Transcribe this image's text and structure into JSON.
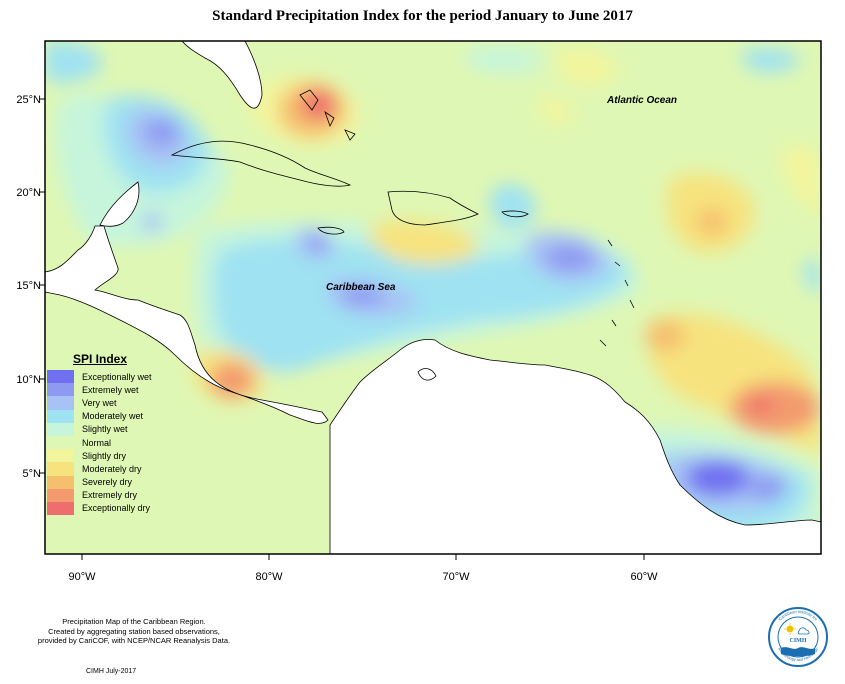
{
  "title": "Standard Precipitation Index for the period January to June 2017",
  "axes": {
    "x_ticks": [
      "90°W",
      "80°W",
      "70°W",
      "60°W"
    ],
    "y_ticks": [
      "25°N",
      "20°N",
      "15°N",
      "10°N",
      "5°N"
    ]
  },
  "labels": {
    "atlantic": "Atlantic Ocean",
    "caribbean": "Caribbean Sea"
  },
  "legend": {
    "title": "SPI Index",
    "items": [
      {
        "label": "Exceptionally wet",
        "color": "#6f6ff0"
      },
      {
        "label": "Extremely wet",
        "color": "#8e9af2"
      },
      {
        "label": "Very wet",
        "color": "#a9c2f5"
      },
      {
        "label": "Moderately wet",
        "color": "#9fe2f2"
      },
      {
        "label": "Slightly wet",
        "color": "#c6f5dc"
      },
      {
        "label": "Normal",
        "color": "#dff7b4"
      },
      {
        "label": "Slightly dry",
        "color": "#f3f59c"
      },
      {
        "label": "Moderately dry",
        "color": "#f7e37e"
      },
      {
        "label": "Severely dry",
        "color": "#f5c06e"
      },
      {
        "label": "Extremely dry",
        "color": "#f39a6e"
      },
      {
        "label": "Exceptionally dry",
        "color": "#ee6d6d"
      }
    ]
  },
  "credit": [
    "Precipitation Map of the Caribbean Region.",
    "Created by aggregating station based observations,",
    "provided by CariCOF, with NCEP/NCAR Reanalysis Data."
  ],
  "footer": "CIMH July-2017",
  "logo": {
    "name": "CIMH",
    "ring_top": "Caribbean Institute for",
    "ring_bottom": "Meteorology and Hydrology"
  }
}
